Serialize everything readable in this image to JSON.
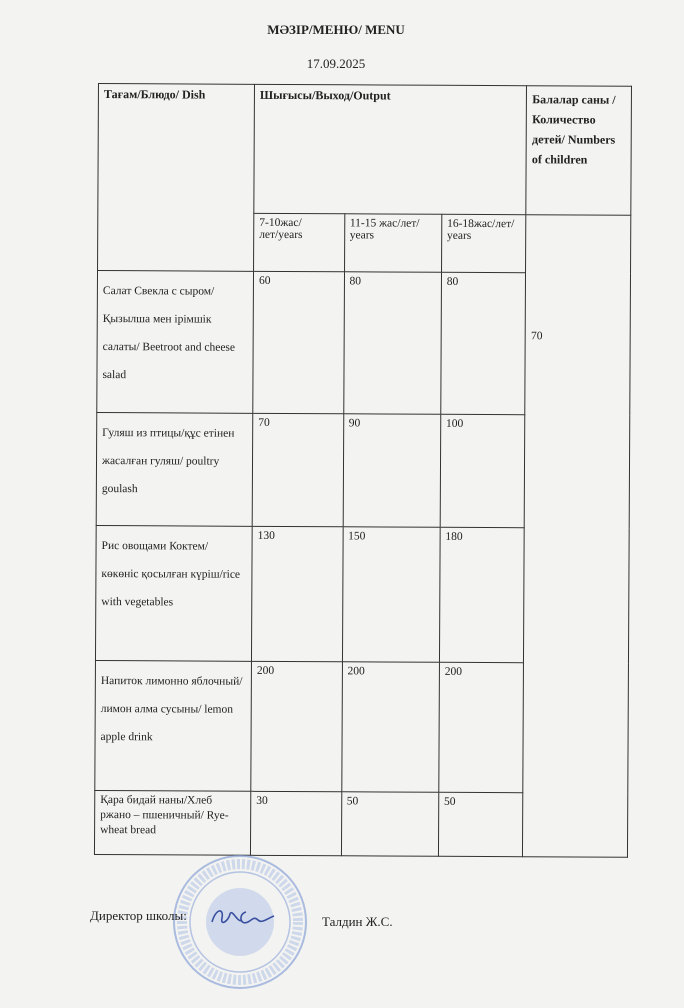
{
  "header": {
    "title": "МӘЗІР/МЕНЮ/ MENU",
    "date": "17.09.2025"
  },
  "table": {
    "col_dish": "Тағам/Блюдо/ Dish",
    "col_output": "Шығысы/Выход/Output",
    "col_children": "Балалар саны /Количество детей/ Numbers of children",
    "age_groups": [
      "7-10жас/лет/years",
      "11-15 жас/лет/ years",
      "16-18жас/лет/ years"
    ],
    "children_count": "70",
    "rows": [
      {
        "dish": "Салат Свекла с сыром/Қызылша мен ірімшік салаты/ Beetroot and cheese salad",
        "values": [
          "60",
          "80",
          "80"
        ]
      },
      {
        "dish": "Гуляш из птицы/құс етінен жасалған гуляш/ poultry goulash",
        "values": [
          "70",
          "90",
          "100"
        ]
      },
      {
        "dish": "Рис овощами Коктем/ көкөніс қосылған күріш/rice with vegetables",
        "values": [
          "130",
          "150",
          "180"
        ]
      },
      {
        "dish": "Напиток лимонно яблочный/ лимон алма сусыны/ lemon apple drink",
        "values": [
          "200",
          "200",
          "200"
        ]
      },
      {
        "dish": "Қара бидай наны/Хлеб ржано – пшеничный/ Rye-wheat bread",
        "values": [
          "30",
          "50",
          "50"
        ]
      }
    ]
  },
  "footer": {
    "director_label": "Директор школы:",
    "director_name": "Талдин Ж.С."
  },
  "colors": {
    "stamp": "#6f8fd0",
    "ink": "#3a4fa0"
  }
}
